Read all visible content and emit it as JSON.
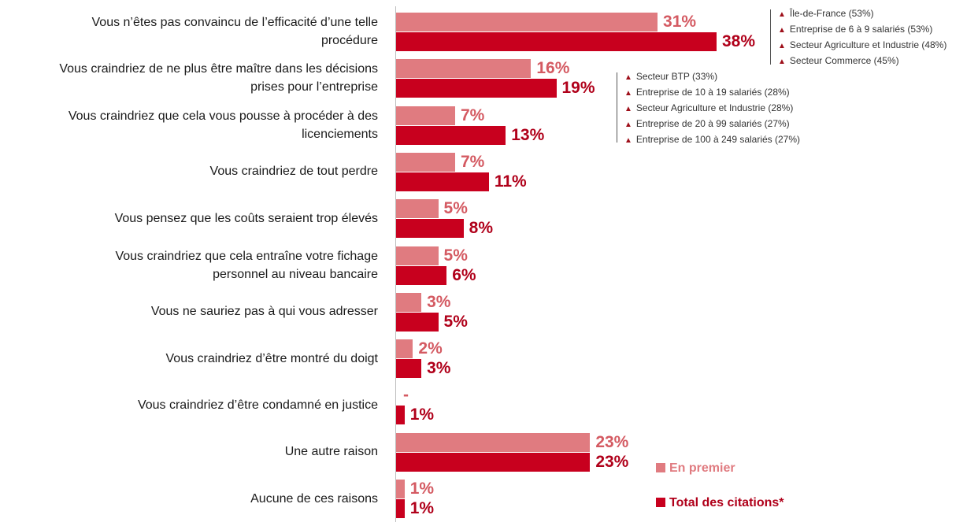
{
  "chart_data": {
    "type": "bar",
    "orientation": "horizontal",
    "categories": [
      [
        "Vous n’êtes pas convaincu de l’efficacité d’une telle",
        "procédure"
      ],
      [
        "Vous craindriez de ne plus être maître dans les décisions",
        "prises pour l’entreprise"
      ],
      [
        "Vous craindriez que cela vous pousse à procéder à des",
        "licenciements"
      ],
      [
        "Vous craindriez de tout perdre"
      ],
      [
        "Vous pensez que les coûts seraient trop élevés"
      ],
      [
        "Vous craindriez que cela entraîne votre fichage",
        "personnel au niveau bancaire"
      ],
      [
        "Vous ne sauriez pas à qui vous adresser"
      ],
      [
        "Vous craindriez d’être montré du doigt"
      ],
      [
        "Vous craindriez d’être condamné en justice"
      ],
      [
        "Une autre raison"
      ],
      [
        "Aucune de ces raisons"
      ]
    ],
    "series": [
      {
        "name": "En premier",
        "color": "#e07b80",
        "values": [
          31,
          16,
          7,
          7,
          5,
          5,
          3,
          2,
          null,
          23,
          1
        ],
        "labels": [
          "31%",
          "16%",
          "7%",
          "7%",
          "5%",
          "5%",
          "3%",
          "2%",
          "-",
          "23%",
          "1%"
        ]
      },
      {
        "name": "Total des citations*",
        "color": "#c8001e",
        "values": [
          38,
          19,
          13,
          11,
          8,
          6,
          5,
          3,
          1,
          23,
          1
        ],
        "labels": [
          "38%",
          "19%",
          "13%",
          "11%",
          "8%",
          "6%",
          "5%",
          "3%",
          "1%",
          "23%",
          "1%"
        ]
      }
    ],
    "xlim": [
      0,
      38
    ],
    "legend_position": "bottom-right",
    "annotations": [
      {
        "category_index": 0,
        "lines": [
          "Île-de-France (53%)",
          "Entreprise de 6 à 9 salariés (53%)",
          "Secteur Agriculture et Industrie (48%)",
          "Secteur Commerce (45%)"
        ]
      },
      {
        "category_index": 1,
        "lines": [
          "Secteur BTP (33%)",
          "Entreprise de 10 à 19 salariés (28%)",
          "Secteur Agriculture et Industrie (28%)",
          "Entreprise de 20 à 99 salariés (27%)",
          "Entreprise de 100 à 249 salariés (27%)"
        ]
      }
    ],
    "annotation_marker_icon": "up-triangle-icon"
  },
  "legend": {
    "first_label": "En premier",
    "total_label": "Total des citations*"
  }
}
